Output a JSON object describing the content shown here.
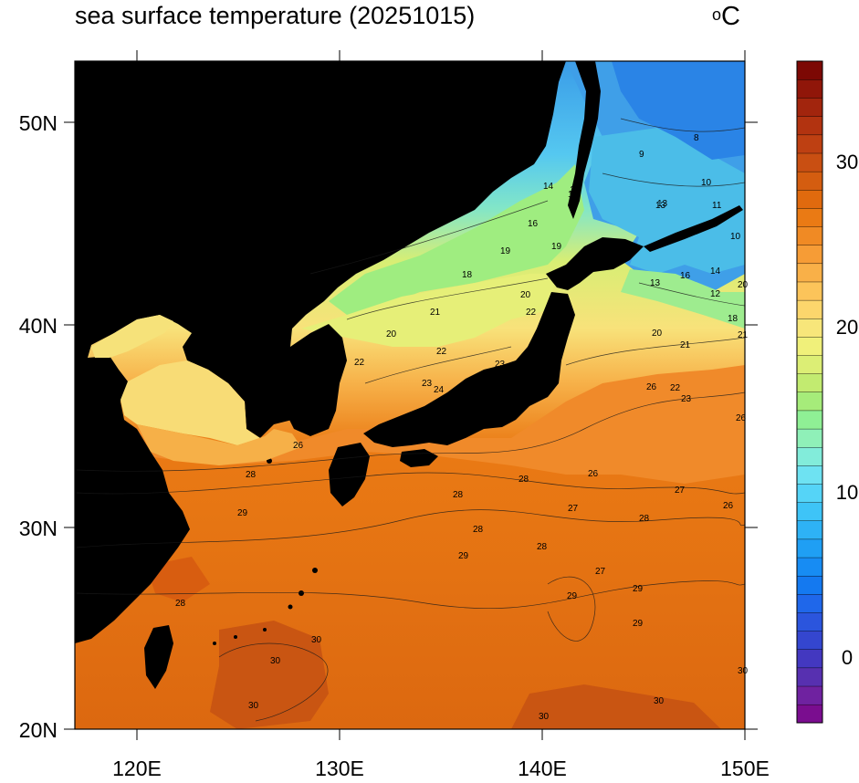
{
  "title": "sea surface temperature (20251015)",
  "units": {
    "prefix": "o",
    "symbol": "C"
  },
  "axes": {
    "x_ticks": [
      "120E",
      "130E",
      "140E",
      "150E"
    ],
    "y_ticks": [
      "20N",
      "30N",
      "40N",
      "50N"
    ]
  },
  "colorbar": {
    "labels": [
      "0",
      "10",
      "20",
      "30"
    ],
    "colors": [
      "#7a0d8f",
      "#6f22a0",
      "#5730b0",
      "#4338c0",
      "#3446cf",
      "#2b55dd",
      "#1f67ea",
      "#1479f0",
      "#178cf3",
      "#1f9ff4",
      "#2eb2f5",
      "#3ec4f7",
      "#55d4f7",
      "#6ee2f2",
      "#82ecda",
      "#8ff0b8",
      "#8ff095",
      "#a6ec7a",
      "#c2eb70",
      "#dcee75",
      "#f0f07a",
      "#f7e67a",
      "#fcd66c",
      "#fcc45a",
      "#f9b048",
      "#f69c36",
      "#f08a24",
      "#ea7a14",
      "#e06a0e",
      "#d45d10",
      "#c94f12",
      "#be4012",
      "#b23310",
      "#a2250d",
      "#901609",
      "#7c0804"
    ]
  },
  "isotherm_labels": [
    "9",
    "8",
    "10",
    "11",
    "10",
    "13",
    "14",
    "15",
    "15",
    "16",
    "19",
    "18",
    "19",
    "20",
    "20",
    "21",
    "22",
    "20",
    "22",
    "21",
    "23",
    "23",
    "22",
    "24",
    "20",
    "21",
    "18",
    "20",
    "14",
    "13",
    "13",
    "12",
    "16",
    "26",
    "22",
    "23",
    "26",
    "28",
    "27",
    "26",
    "27",
    "26",
    "28",
    "28",
    "28",
    "28",
    "29",
    "28",
    "27",
    "29",
    "29",
    "30",
    "30",
    "30",
    "30",
    "30",
    "30",
    "29",
    "29",
    "26",
    "28"
  ]
}
